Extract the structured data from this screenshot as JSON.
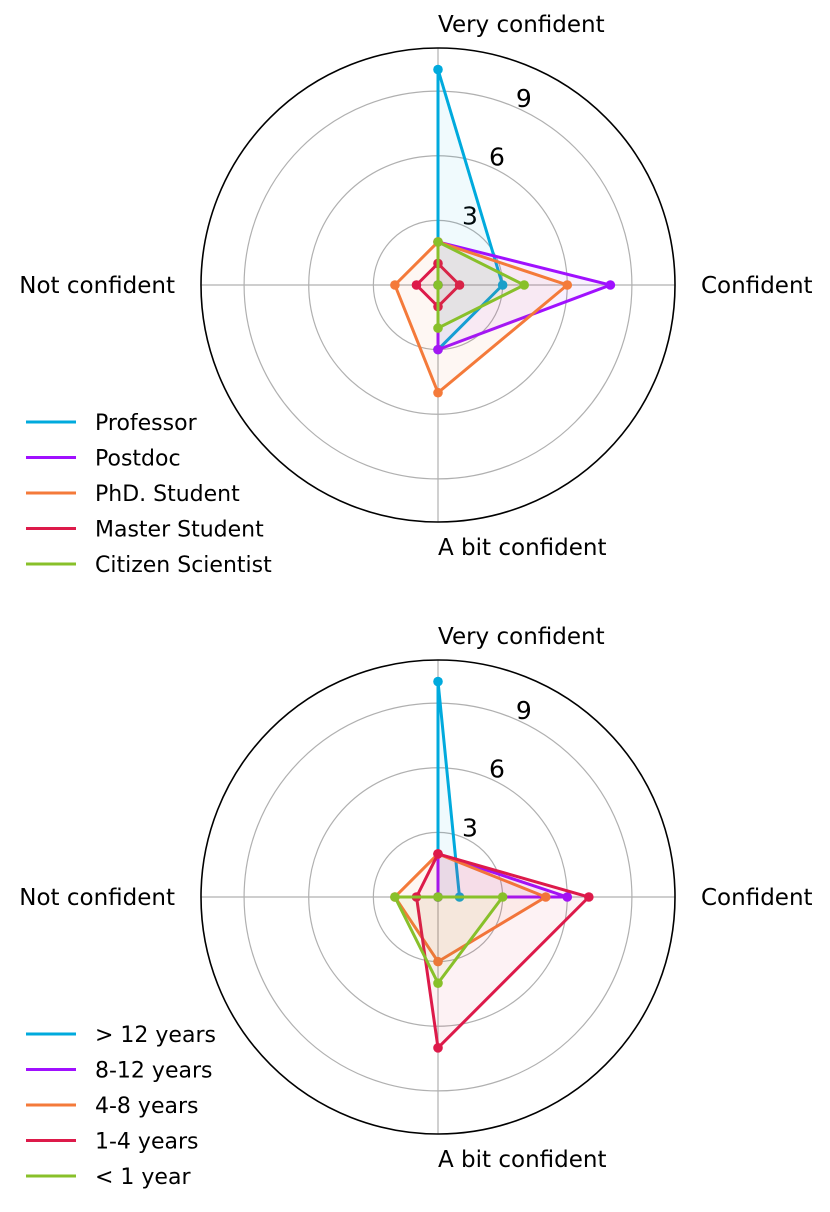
{
  "chart_data": [
    {
      "type": "radar",
      "axes": [
        "Very confident",
        "Confident",
        "A bit confident",
        "Not confident"
      ],
      "radial_ticks": [
        "3",
        "6",
        "9"
      ],
      "rlim": [
        0,
        11
      ],
      "grid": true,
      "legend_placement": "lower-left",
      "series": [
        {
          "name": "Professor",
          "color": "#00aadd",
          "values": [
            10,
            3,
            3,
            0
          ]
        },
        {
          "name": "Postdoc",
          "color": "#a010ff",
          "values": [
            2,
            8,
            3,
            0
          ]
        },
        {
          "name": "PhD. Student",
          "color": "#f47a3a",
          "values": [
            2,
            6,
            5,
            2
          ]
        },
        {
          "name": "Master Student",
          "color": "#dd1a4a",
          "values": [
            1,
            1,
            1,
            1
          ]
        },
        {
          "name": "Citizen Scientist",
          "color": "#88c02a",
          "values": [
            2,
            4,
            2,
            0
          ]
        }
      ]
    },
    {
      "type": "radar",
      "axes": [
        "Very confident",
        "Confident",
        "A bit confident",
        "Not confident"
      ],
      "radial_ticks": [
        "3",
        "6",
        "9"
      ],
      "rlim": [
        0,
        11
      ],
      "grid": true,
      "legend_placement": "lower-left",
      "series": [
        {
          "name": "> 12 years",
          "color": "#00aadd",
          "values": [
            10,
            1,
            0,
            0
          ]
        },
        {
          "name": "8-12 years",
          "color": "#a010ff",
          "values": [
            2,
            6,
            0,
            0
          ]
        },
        {
          "name": "4-8 years",
          "color": "#f47a3a",
          "values": [
            2,
            5,
            3,
            2
          ]
        },
        {
          "name": "1-4 years",
          "color": "#dd1a4a",
          "values": [
            2,
            7,
            7,
            1
          ]
        },
        {
          "name": "< 1 year",
          "color": "#88c02a",
          "values": [
            0,
            3,
            4,
            2
          ]
        }
      ]
    }
  ]
}
